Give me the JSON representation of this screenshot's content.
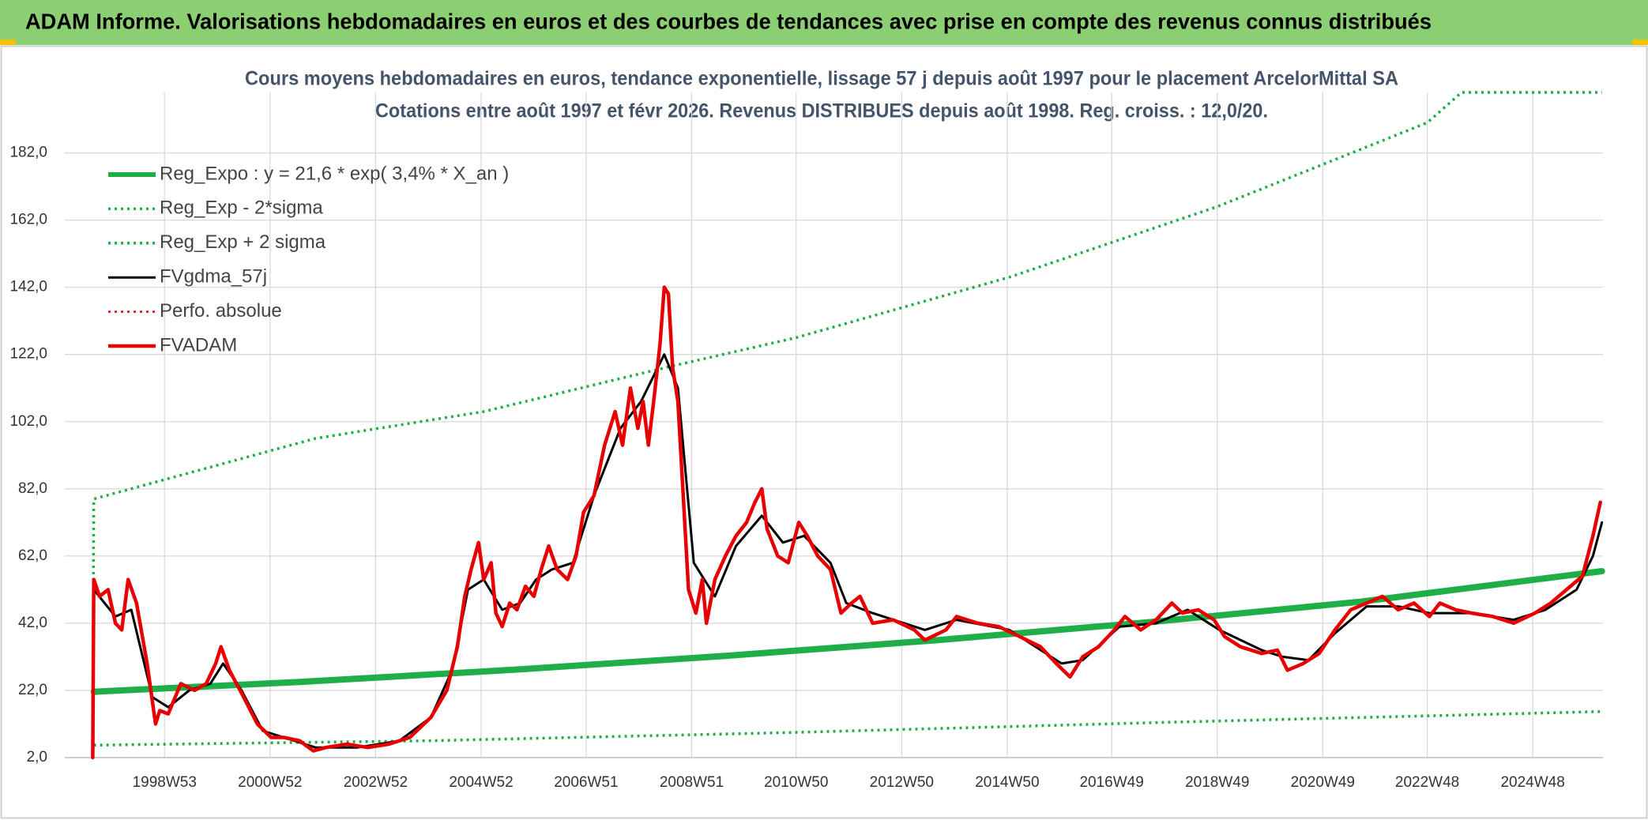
{
  "banner": "ADAM Informe. Valorisations hebdomadaires en euros et des courbes de tendances avec prise en compte des revenus connus distribués",
  "chart_data": {
    "type": "line",
    "title": "Cours moyens hebdomadaires en euros, tendance exponentielle, lissage 57 j depuis août 1997 pour le placement ArcelorMittal SA",
    "subtitle": "Cotations entre août 1997 et févr 2026. Revenus DISTRIBUES depuis août 1998. Reg. croiss. : 12,0/20.",
    "xlim": [
      1997.1,
      2026.25
    ],
    "ylim": [
      2,
      200
    ],
    "grid": true,
    "legend": "upper left",
    "xticks": [
      {
        "value": 1998.99,
        "label": "1998W53"
      },
      {
        "value": 2000.99,
        "label": "2000W52"
      },
      {
        "value": 2002.99,
        "label": "2002W52"
      },
      {
        "value": 2004.99,
        "label": "2004W52"
      },
      {
        "value": 2006.98,
        "label": "2006W51"
      },
      {
        "value": 2008.98,
        "label": "2008W51"
      },
      {
        "value": 2010.96,
        "label": "2010W50"
      },
      {
        "value": 2012.96,
        "label": "2012W50"
      },
      {
        "value": 2014.96,
        "label": "2014W50"
      },
      {
        "value": 2016.94,
        "label": "2016W49"
      },
      {
        "value": 2018.94,
        "label": "2018W49"
      },
      {
        "value": 2020.94,
        "label": "2020W49"
      },
      {
        "value": 2022.92,
        "label": "2022W48"
      },
      {
        "value": 2024.92,
        "label": "2024W48"
      }
    ],
    "yticks": [
      {
        "value": 2,
        "label": "2,0"
      },
      {
        "value": 22,
        "label": "22,0"
      },
      {
        "value": 42,
        "label": "42,0"
      },
      {
        "value": 62,
        "label": "62,0"
      },
      {
        "value": 82,
        "label": "82,0"
      },
      {
        "value": 102,
        "label": "102,0"
      },
      {
        "value": 122,
        "label": "122,0"
      },
      {
        "value": 142,
        "label": "142,0"
      },
      {
        "value": 162,
        "label": "162,0"
      },
      {
        "value": 182,
        "label": "182,0"
      }
    ],
    "series": [
      {
        "name": "Reg_Expo : y = 21,6 * exp( 3,4% *  X_an )",
        "color": "#1fae48",
        "style": "solid",
        "x": [
          1997.65,
          2001.65,
          2005.65,
          2009.65,
          2013.65,
          2017.65,
          2021.65,
          2026.23
        ],
        "values": [
          21.6,
          24.6,
          28.2,
          32.3,
          37.0,
          42.3,
          48.4,
          57.5
        ]
      },
      {
        "name": "Reg_Exp - 2*sigma",
        "color": "#1fae48",
        "style": "dotted",
        "x": [
          1997.65,
          2004.0,
          2010.95,
          2018.0,
          2026.23
        ],
        "values": [
          5.7,
          7,
          9.5,
          12.5,
          15.7
        ]
      },
      {
        "name": "Reg_Exp + 2 sigma",
        "color": "#1fae48",
        "style": "dotted",
        "x": [
          1997.63,
          1997.65,
          2001.85,
          2005.04,
          2008.46,
          2010.96,
          2015.0,
          2018.94,
          2022.92,
          2023.57,
          2026.23
        ],
        "values": [
          2,
          79,
          97,
          105,
          118,
          127,
          145,
          166,
          191,
          200,
          200
        ]
      },
      {
        "name": "FVgdma_57j",
        "color": "#000000",
        "style": "solid",
        "x": [
          1997.63,
          1997.65,
          1998.06,
          1998.36,
          1998.76,
          1999.06,
          1999.46,
          1999.86,
          2000.1,
          2000.45,
          2000.85,
          2001.25,
          2001.85,
          2002.65,
          2003.44,
          2004.04,
          2004.44,
          2004.74,
          2005.04,
          2005.39,
          2005.73,
          2006.03,
          2006.33,
          2006.73,
          2007.13,
          2007.63,
          2008.02,
          2008.46,
          2008.72,
          2009.02,
          2009.42,
          2009.82,
          2010.31,
          2010.71,
          2011.11,
          2011.61,
          2011.91,
          2012.41,
          2013.4,
          2014.0,
          2015.0,
          2015.99,
          2016.39,
          2017.09,
          2017.78,
          2018.38,
          2018.98,
          2019.78,
          2020.18,
          2020.67,
          2021.17,
          2021.77,
          2022.37,
          2022.96,
          2023.76,
          2024.56,
          2025.16,
          2025.75,
          2026.06,
          2026.23
        ],
        "values": [
          2,
          52,
          44,
          46,
          20,
          17,
          22,
          24,
          30,
          22,
          10,
          8,
          5,
          5,
          7,
          14,
          28,
          52,
          55,
          46,
          48,
          55,
          58,
          60,
          80,
          100,
          108,
          122,
          112,
          60,
          50,
          65,
          74,
          66,
          68,
          60,
          48,
          45,
          40,
          43,
          40,
          30,
          31,
          41,
          42,
          46,
          40,
          34,
          32,
          31,
          39,
          47,
          47,
          45,
          45,
          43,
          46,
          52,
          62,
          72
        ]
      },
      {
        "name": "Perfo. absolue",
        "color": "#e00000",
        "style": "dotted",
        "x": [],
        "values": []
      },
      {
        "name": "FVADAM",
        "color": "#e80000",
        "style": "solid",
        "x": [
          1997.63,
          1997.65,
          1997.76,
          1997.92,
          1998.06,
          1998.18,
          1998.3,
          1998.46,
          1998.66,
          1998.82,
          1998.9,
          1999.06,
          1999.3,
          1999.56,
          1999.78,
          1999.96,
          2000.06,
          2000.22,
          2000.49,
          2000.75,
          2001.01,
          2001.25,
          2001.55,
          2001.81,
          2002.05,
          2002.45,
          2002.84,
          2003.24,
          2003.64,
          2004.04,
          2004.34,
          2004.54,
          2004.68,
          2004.8,
          2004.94,
          2005.04,
          2005.18,
          2005.27,
          2005.39,
          2005.53,
          2005.67,
          2005.83,
          2005.99,
          2006.13,
          2006.27,
          2006.43,
          2006.63,
          2006.79,
          2006.93,
          2007.13,
          2007.33,
          2007.53,
          2007.67,
          2007.82,
          2007.96,
          2008.06,
          2008.16,
          2008.26,
          2008.38,
          2008.46,
          2008.54,
          2008.62,
          2008.72,
          2008.82,
          2008.92,
          2009.06,
          2009.18,
          2009.26,
          2009.42,
          2009.62,
          2009.82,
          2010.02,
          2010.18,
          2010.31,
          2010.41,
          2010.61,
          2010.81,
          2011.01,
          2011.17,
          2011.37,
          2011.61,
          2011.81,
          2012.01,
          2012.17,
          2012.41,
          2012.8,
          2013.2,
          2013.4,
          2013.8,
          2014.0,
          2014.4,
          2014.8,
          2015.2,
          2015.59,
          2015.89,
          2016.15,
          2016.39,
          2016.69,
          2016.99,
          2017.19,
          2017.49,
          2017.78,
          2018.08,
          2018.28,
          2018.58,
          2018.88,
          2019.08,
          2019.38,
          2019.78,
          2020.08,
          2020.27,
          2020.57,
          2020.87,
          2021.17,
          2021.47,
          2021.77,
          2022.07,
          2022.37,
          2022.67,
          2022.96,
          2023.16,
          2023.46,
          2023.76,
          2024.16,
          2024.56,
          2024.96,
          2025.26,
          2025.56,
          2025.86,
          2026.06,
          2026.2
        ],
        "values": [
          2,
          55,
          50,
          52,
          42,
          40,
          55,
          48,
          30,
          12,
          16,
          15,
          24,
          22,
          24,
          30,
          35,
          28,
          20,
          12,
          8,
          8,
          7,
          4,
          5,
          6,
          5,
          6,
          8,
          14,
          22,
          35,
          50,
          58,
          66,
          55,
          60,
          45,
          41,
          48,
          46,
          53,
          50,
          58,
          65,
          58,
          55,
          62,
          75,
          80,
          95,
          105,
          95,
          112,
          100,
          108,
          95,
          108,
          125,
          142,
          140,
          118,
          108,
          80,
          52,
          45,
          55,
          42,
          55,
          62,
          68,
          72,
          78,
          82,
          70,
          62,
          60,
          72,
          68,
          62,
          58,
          45,
          48,
          50,
          42,
          43,
          40,
          37,
          40,
          44,
          42,
          41,
          38,
          35,
          30,
          26,
          32,
          35,
          40,
          44,
          40,
          43,
          48,
          45,
          46,
          43,
          38,
          35,
          33,
          34,
          28,
          30,
          33,
          40,
          46,
          48,
          50,
          46,
          48,
          44,
          48,
          46,
          45,
          44,
          42,
          45,
          48,
          52,
          56,
          68,
          78
        ]
      }
    ]
  }
}
